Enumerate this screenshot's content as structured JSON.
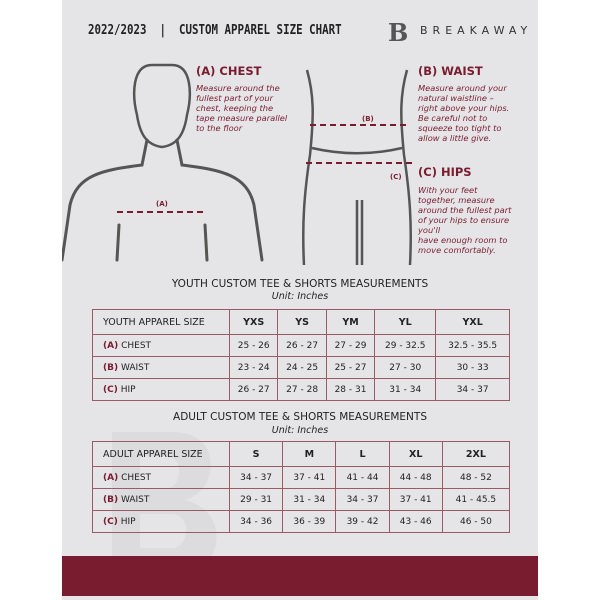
{
  "header": {
    "title": "2022/2023  |  CUSTOM APPAREL SIZE CHART",
    "brand": "BREAKAWAY",
    "logo_letter": "B"
  },
  "guide": {
    "chest": {
      "title": "(A) CHEST",
      "text": [
        "Measure around the",
        "fullest part of your",
        "chest, keeping the",
        "tape measure parallel",
        "to the floor"
      ],
      "marker": "(A)"
    },
    "waist": {
      "title": "(B) WAIST",
      "text": [
        "Measure around your",
        "natural waistline –",
        "right above your hips.",
        "Be careful not to",
        "squeeze too tight to",
        "allow a little give."
      ],
      "marker": "(B)"
    },
    "hips": {
      "title": "(C) HIPS",
      "text": [
        "With your feet",
        "together, measure",
        "around the fullest part",
        "of your hips to ensure",
        "you'll",
        "have enough room to",
        "move comfortably."
      ],
      "marker": "(C)"
    }
  },
  "youth": {
    "title": "YOUTH CUSTOM TEE & SHORTS MEASUREMENTS",
    "unit": "Unit: Inches",
    "header": "YOUTH APPAREL SIZE",
    "sizes": [
      "YXS",
      "YS",
      "YM",
      "YL",
      "YXL"
    ],
    "rows": [
      {
        "letter": "(A)",
        "name": "CHEST",
        "values": [
          "25 - 26",
          "26 - 27",
          "27 - 29",
          "29 - 32.5",
          "32.5 - 35.5"
        ]
      },
      {
        "letter": "(B)",
        "name": "WAIST",
        "values": [
          "23 - 24",
          "24 - 25",
          "25 - 27",
          "27 - 30",
          "30 - 33"
        ]
      },
      {
        "letter": "(C)",
        "name": "HIP",
        "values": [
          "26 - 27",
          "27 - 28",
          "28 - 31",
          "31 - 34",
          "34 - 37"
        ]
      }
    ]
  },
  "adult": {
    "title": "ADULT CUSTOM TEE & SHORTS MEASUREMENTS",
    "unit": "Unit: Inches",
    "header": "ADULT APPAREL SIZE",
    "sizes": [
      "S",
      "M",
      "L",
      "XL",
      "2XL"
    ],
    "rows": [
      {
        "letter": "(A)",
        "name": "CHEST",
        "values": [
          "34 - 37",
          "37 - 41",
          "41 - 44",
          "44 - 48",
          "48 - 52"
        ]
      },
      {
        "letter": "(B)",
        "name": "WAIST",
        "values": [
          "29 - 31",
          "31 - 34",
          "34 - 37",
          "37 - 41",
          "41 - 45.5"
        ]
      },
      {
        "letter": "(C)",
        "name": "HIP",
        "values": [
          "34 - 36",
          "36 - 39",
          "39 - 42",
          "43 - 46",
          "46 - 50"
        ]
      }
    ]
  },
  "colors": {
    "accent": "#7a1c30",
    "background": "#e5e5e7"
  }
}
